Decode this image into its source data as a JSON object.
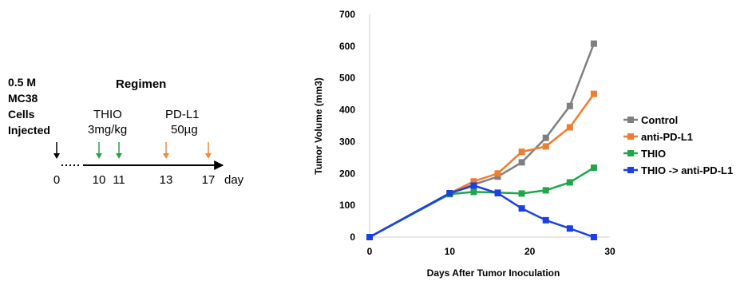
{
  "schematic": {
    "cells_lines": [
      "0.5 M",
      "MC38",
      "Cells",
      "Injected"
    ],
    "regimen_title": "Regimen",
    "drug1": {
      "name": "THIO",
      "dose": "3mg/kg",
      "days": [
        10,
        11
      ]
    },
    "drug2": {
      "name": "PD-L1",
      "dose": "50µg",
      "days": [
        13,
        17
      ]
    },
    "tick_labels": [
      "0",
      "10",
      "11",
      "13",
      "17"
    ],
    "unit_label": "day",
    "colors": {
      "drug1": "#2aa24a",
      "drug2": "#f08a3e",
      "injection": "#000000"
    }
  },
  "chart_data": {
    "type": "line",
    "title": "",
    "xlabel": "Days After Tumor Inoculation",
    "ylabel": "Tumor Volume (mm3)",
    "xlim": [
      0,
      30
    ],
    "ylim": [
      0,
      700
    ],
    "xticks": [
      0,
      10,
      20,
      30
    ],
    "yticks": [
      0,
      100,
      200,
      300,
      400,
      500,
      600,
      700
    ],
    "grid": false,
    "legend_position": "right",
    "series": [
      {
        "name": "Control",
        "color": "#7f7f7f",
        "x": [
          0,
          10,
          13,
          16,
          19,
          22,
          25,
          28
        ],
        "y": [
          0,
          138,
          165,
          190,
          235,
          312,
          412,
          608
        ]
      },
      {
        "name": "anti-PD-L1",
        "color": "#ed7d31",
        "x": [
          0,
          10,
          13,
          16,
          19,
          22,
          25,
          28
        ],
        "y": [
          0,
          138,
          175,
          200,
          268,
          285,
          345,
          450
        ]
      },
      {
        "name": "THIO",
        "color": "#1fa64a",
        "x": [
          0,
          10,
          13,
          16,
          19,
          22,
          25,
          28
        ],
        "y": [
          0,
          135,
          142,
          140,
          137,
          147,
          172,
          218
        ]
      },
      {
        "name": "THIO -> anti-PD-L1",
        "color": "#1c3fe0",
        "x": [
          0,
          10,
          13,
          16,
          19,
          22,
          25,
          28
        ],
        "y": [
          0,
          138,
          162,
          138,
          90,
          53,
          27,
          0
        ]
      }
    ]
  }
}
